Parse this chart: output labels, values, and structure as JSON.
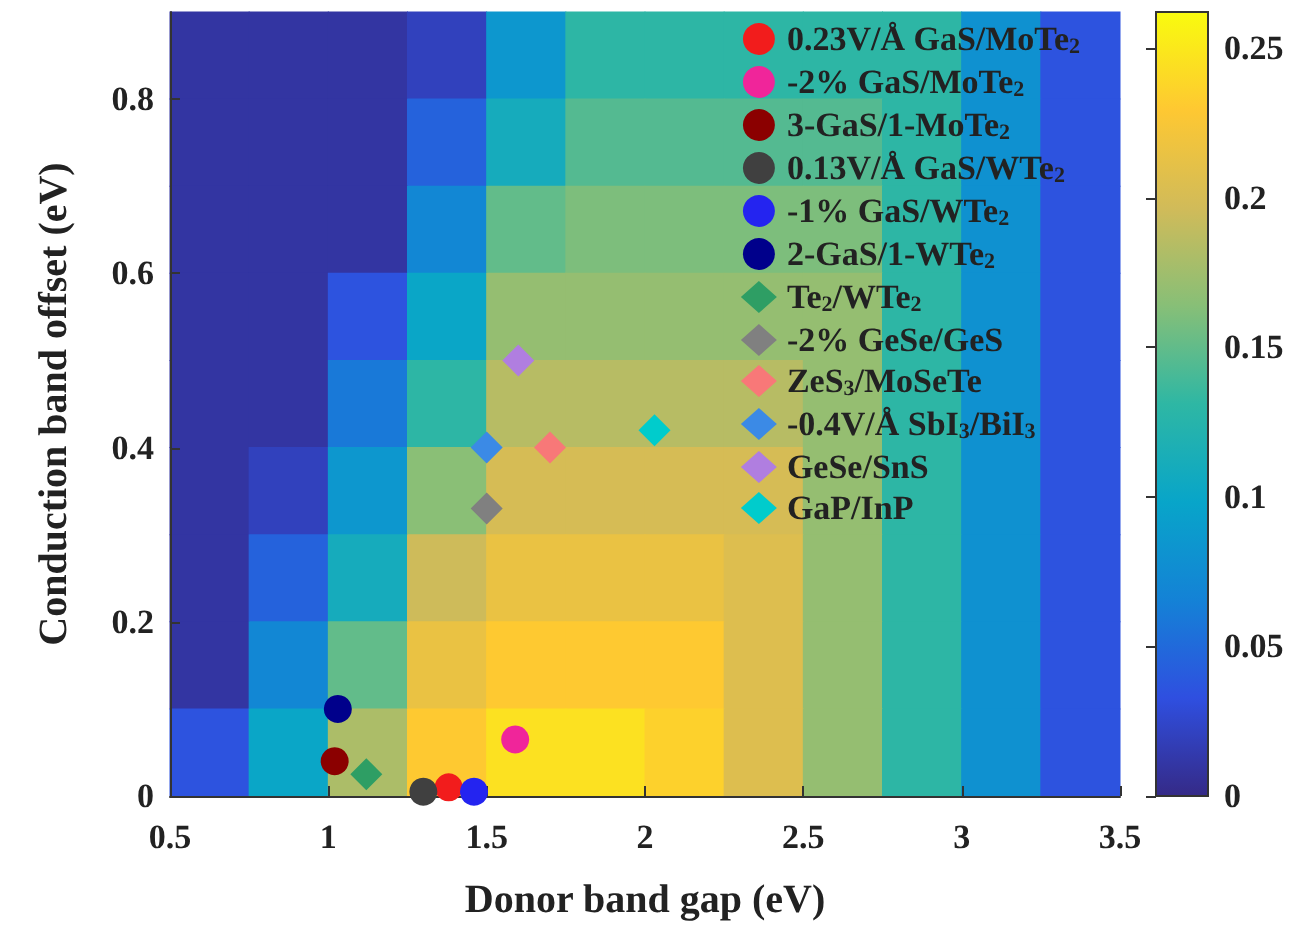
{
  "chart_data": [
    {
      "type": "heatmap",
      "clim": [
        0,
        0.262
      ],
      "cticks": [
        0,
        0.05,
        0.1,
        0.15,
        0.2,
        0.25
      ],
      "categories": [
        null,
        null,
        null,
        null,
        null,
        null,
        null,
        null,
        null,
        null,
        null,
        null
      ],
      "y_categories": [
        null,
        null,
        null,
        null,
        null,
        null,
        null,
        null,
        null
      ],
      "cells": [
        [
          0.01,
          0.01,
          0.01,
          0.02,
          0.085,
          0.13,
          0.13,
          0.13,
          0.13,
          0.13,
          0.08,
          0.035
        ],
        [
          0.01,
          0.01,
          0.01,
          0.045,
          0.11,
          0.145,
          0.145,
          0.145,
          0.145,
          0.13,
          0.08,
          0.035
        ],
        [
          0.01,
          0.01,
          0.01,
          0.07,
          0.15,
          0.16,
          0.16,
          0.16,
          0.16,
          0.13,
          0.08,
          0.035
        ],
        [
          0.01,
          0.01,
          0.035,
          0.1,
          0.17,
          0.17,
          0.17,
          0.17,
          0.17,
          0.13,
          0.08,
          0.035
        ],
        [
          0.01,
          0.01,
          0.06,
          0.13,
          0.185,
          0.185,
          0.185,
          0.185,
          0.17,
          0.13,
          0.08,
          0.035
        ],
        [
          0.01,
          0.02,
          0.085,
          0.165,
          0.2,
          0.2,
          0.2,
          0.2,
          0.17,
          0.13,
          0.08,
          0.035
        ],
        [
          0.01,
          0.045,
          0.11,
          0.195,
          0.215,
          0.215,
          0.215,
          0.205,
          0.17,
          0.13,
          0.08,
          0.035
        ],
        [
          0.01,
          0.07,
          0.15,
          0.215,
          0.23,
          0.23,
          0.23,
          0.205,
          0.17,
          0.13,
          0.08,
          0.035
        ],
        [
          0.035,
          0.1,
          0.18,
          0.23,
          0.245,
          0.245,
          0.235,
          0.205,
          0.17,
          0.13,
          0.08,
          0.035
        ]
      ]
    },
    {
      "type": "scatter",
      "xlabel": "Donor band gap (eV)",
      "ylabel": "Conduction band offset (eV)",
      "xlim": [
        0.5,
        3.5
      ],
      "xticks": [
        0.5,
        1,
        1.5,
        2,
        2.5,
        3,
        3.5
      ],
      "ylim": [
        0,
        0.9
      ],
      "yticks": [
        0,
        0.2,
        0.4,
        0.6,
        0.8
      ],
      "legend": "top right",
      "series": [
        {
          "marker": "circle",
          "name": "0.23V/Å GaS/MoTe$_{2}$",
          "color": "#f21c1c",
          "x": [
            1.38
          ],
          "values": [
            0.01
          ]
        },
        {
          "marker": "circle",
          "name": "-2% GaS/MoTe$_{2}$",
          "color": "#f0259a",
          "x": [
            1.59
          ],
          "values": [
            0.065
          ]
        },
        {
          "marker": "circle",
          "name": "3-GaS/1-MoTe$_{2}$",
          "color": "#8b0000",
          "x": [
            1.02
          ],
          "values": [
            0.04
          ]
        },
        {
          "marker": "circle",
          "name": "0.13V/Å GaS/WTe$_{2}$",
          "color": "#404040",
          "x": [
            1.3
          ],
          "values": [
            0.005
          ]
        },
        {
          "marker": "circle",
          "name": "-1% GaS/WTe$_{2}$",
          "color": "#2424f0",
          "x": [
            1.46
          ],
          "values": [
            0.005
          ]
        },
        {
          "marker": "circle",
          "name": "2-GaS/1-WTe$_{2}$",
          "color": "#00008b",
          "x": [
            1.03
          ],
          "values": [
            0.1
          ]
        },
        {
          "marker": "diamond",
          "name": "Te$_{2}$/WTe$_{2}$",
          "color": "#2e9e64",
          "x": [
            1.12
          ],
          "values": [
            0.025
          ]
        },
        {
          "marker": "diamond",
          "name": "-2% GeSe/GeS",
          "color": "#808080",
          "x": [
            1.5
          ],
          "values": [
            0.33
          ]
        },
        {
          "marker": "diamond",
          "name": "ZeS$_{3}$/MoSeTe",
          "color": "#f87878",
          "x": [
            1.7
          ],
          "values": [
            0.4
          ]
        },
        {
          "marker": "diamond",
          "name": "-0.4V/Å SbI$_{3}$/BiI$_{3}$",
          "color": "#3b8ae6",
          "x": [
            1.5
          ],
          "values": [
            0.4
          ]
        },
        {
          "marker": "diamond",
          "name": "GeSe/SnS",
          "color": "#b07ee0",
          "x": [
            1.6
          ],
          "values": [
            0.5
          ]
        },
        {
          "marker": "diamond",
          "name": "GaP/InP",
          "color": "#00cccc",
          "x": [
            2.03
          ],
          "values": [
            0.42
          ]
        }
      ]
    }
  ]
}
